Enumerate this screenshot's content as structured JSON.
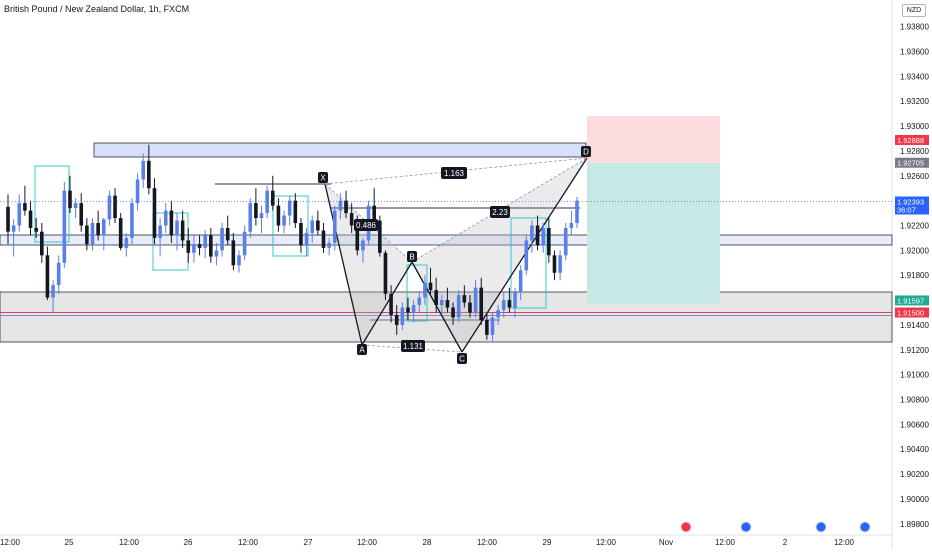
{
  "header": {
    "title": "British Pound / New Zealand Dollar, 1h, FXCM",
    "currency": "NZD"
  },
  "chart_data": {
    "type": "candlestick",
    "price_ticks": [
      "1.93800",
      "1.93600",
      "1.93400",
      "1.93200",
      "1.93000",
      "1.92800",
      "1.92600",
      "1.92200",
      "1.92000",
      "1.91800",
      "1.91400",
      "1.91200",
      "1.91000",
      "1.90800",
      "1.90600",
      "1.90400",
      "1.90200",
      "1.90000",
      "1.89800"
    ],
    "price_range": [
      1.8975,
      1.9395
    ],
    "time_ticks": [
      "12:00",
      "25",
      "12:00",
      "26",
      "12:00",
      "27",
      "12:00",
      "28",
      "12:00",
      "29",
      "12:00",
      "Nov",
      "12:00",
      "2",
      "12:00"
    ],
    "price_tags": [
      {
        "label": "1.92888",
        "value": 1.92888,
        "color": "#f23645"
      },
      {
        "label": "1.92705",
        "value": 1.92705,
        "color": "#787b86"
      },
      {
        "label": "1.92393",
        "sublabel": "36:07",
        "value": 1.92393,
        "color": "#2962ff"
      },
      {
        "label": "1.91597",
        "value": 1.91597,
        "color": "#22ab94"
      },
      {
        "label": "1.91500",
        "value": 1.915,
        "color": "#f23645"
      }
    ],
    "pattern_points": [
      {
        "label": "X",
        "value": 1.9253
      },
      {
        "label": "A",
        "value": 1.9132
      },
      {
        "label": "B",
        "value": 1.9186
      },
      {
        "label": "C",
        "value": 1.9122
      },
      {
        "label": "D",
        "value": 1.92705
      }
    ],
    "ratios": [
      {
        "label": "1.163"
      },
      {
        "label": "0.486"
      },
      {
        "label": "2.23"
      },
      {
        "label": "1.131"
      }
    ],
    "position": {
      "entry": 1.92705,
      "stop": 1.92888,
      "target": 1.91597
    },
    "candles": [
      [
        1.9235,
        1.9245,
        1.9205,
        1.9215
      ],
      [
        1.9215,
        1.9225,
        1.9195,
        1.922
      ],
      [
        1.922,
        1.9245,
        1.9215,
        1.9238
      ],
      [
        1.9238,
        1.9252,
        1.9228,
        1.9232
      ],
      [
        1.9232,
        1.924,
        1.9212,
        1.9218
      ],
      [
        1.9218,
        1.9226,
        1.921,
        1.9215
      ],
      [
        1.9215,
        1.9222,
        1.919,
        1.9196
      ],
      [
        1.9196,
        1.9203,
        1.916,
        1.9162
      ],
      [
        1.9162,
        1.9176,
        1.915,
        1.9172
      ],
      [
        1.9172,
        1.9196,
        1.9165,
        1.919
      ],
      [
        1.919,
        1.9255,
        1.9186,
        1.9248
      ],
      [
        1.9248,
        1.926,
        1.923,
        1.9234
      ],
      [
        1.9234,
        1.9242,
        1.9226,
        1.9238
      ],
      [
        1.9238,
        1.9246,
        1.9215,
        1.922
      ],
      [
        1.922,
        1.9226,
        1.92,
        1.9205
      ],
      [
        1.9205,
        1.9226,
        1.92,
        1.9222
      ],
      [
        1.9222,
        1.9232,
        1.9208,
        1.9212
      ],
      [
        1.9212,
        1.9226,
        1.92,
        1.9225
      ],
      [
        1.9225,
        1.9248,
        1.922,
        1.9244
      ],
      [
        1.9244,
        1.925,
        1.9222,
        1.9226
      ],
      [
        1.9226,
        1.923,
        1.92,
        1.9202
      ],
      [
        1.9202,
        1.9214,
        1.9195,
        1.921
      ],
      [
        1.921,
        1.9242,
        1.9205,
        1.9238
      ],
      [
        1.9238,
        1.9262,
        1.9232,
        1.9257
      ],
      [
        1.9257,
        1.9278,
        1.925,
        1.9272
      ],
      [
        1.9272,
        1.9285,
        1.9245,
        1.925
      ],
      [
        1.925,
        1.9258,
        1.9205,
        1.921
      ],
      [
        1.921,
        1.9226,
        1.9195,
        1.922
      ],
      [
        1.922,
        1.9238,
        1.9214,
        1.9232
      ],
      [
        1.9232,
        1.924,
        1.9206,
        1.9212
      ],
      [
        1.9212,
        1.923,
        1.92,
        1.9224
      ],
      [
        1.9224,
        1.9232,
        1.9202,
        1.9208
      ],
      [
        1.9208,
        1.9218,
        1.919,
        1.9198
      ],
      [
        1.9198,
        1.9212,
        1.919,
        1.9205
      ],
      [
        1.9205,
        1.9212,
        1.9196,
        1.9202
      ],
      [
        1.9202,
        1.9216,
        1.9194,
        1.9212
      ],
      [
        1.9212,
        1.9218,
        1.919,
        1.9195
      ],
      [
        1.9195,
        1.9206,
        1.9188,
        1.92
      ],
      [
        1.92,
        1.9222,
        1.9195,
        1.9218
      ],
      [
        1.9218,
        1.9228,
        1.9204,
        1.9208
      ],
      [
        1.9208,
        1.9214,
        1.9184,
        1.9188
      ],
      [
        1.9188,
        1.92,
        1.9182,
        1.9196
      ],
      [
        1.9196,
        1.922,
        1.9192,
        1.9215
      ],
      [
        1.9215,
        1.9242,
        1.921,
        1.9238
      ],
      [
        1.9238,
        1.925,
        1.922,
        1.9226
      ],
      [
        1.9226,
        1.9236,
        1.9214,
        1.923
      ],
      [
        1.923,
        1.9252,
        1.9226,
        1.9248
      ],
      [
        1.9248,
        1.926,
        1.9232,
        1.9236
      ],
      [
        1.9236,
        1.9242,
        1.9215,
        1.922
      ],
      [
        1.922,
        1.9232,
        1.9214,
        1.9228
      ],
      [
        1.9228,
        1.9244,
        1.922,
        1.924
      ],
      [
        1.924,
        1.9246,
        1.9218,
        1.9222
      ],
      [
        1.9222,
        1.9226,
        1.9198,
        1.9204
      ],
      [
        1.9204,
        1.9218,
        1.9195,
        1.9214
      ],
      [
        1.9214,
        1.9228,
        1.9206,
        1.9224
      ],
      [
        1.9224,
        1.9232,
        1.9212,
        1.9216
      ],
      [
        1.9216,
        1.9222,
        1.9198,
        1.9202
      ],
      [
        1.9202,
        1.921,
        1.9196,
        1.9206
      ],
      [
        1.9206,
        1.9236,
        1.92,
        1.9232
      ],
      [
        1.9232,
        1.9246,
        1.9225,
        1.924
      ],
      [
        1.924,
        1.9248,
        1.9226,
        1.923
      ],
      [
        1.923,
        1.9238,
        1.9214,
        1.922
      ],
      [
        1.922,
        1.9228,
        1.9196,
        1.92
      ],
      [
        1.92,
        1.921,
        1.919,
        1.9208
      ],
      [
        1.9208,
        1.924,
        1.9204,
        1.9236
      ],
      [
        1.9236,
        1.925,
        1.922,
        1.9224
      ],
      [
        1.9224,
        1.9228,
        1.9195,
        1.9198
      ],
      [
        1.9198,
        1.92,
        1.916,
        1.9165
      ],
      [
        1.9165,
        1.9172,
        1.9142,
        1.9148
      ],
      [
        1.9148,
        1.9156,
        1.9132,
        1.914
      ],
      [
        1.914,
        1.9158,
        1.9136,
        1.9154
      ],
      [
        1.9154,
        1.9162,
        1.9144,
        1.915
      ],
      [
        1.915,
        1.916,
        1.9142,
        1.9156
      ],
      [
        1.9156,
        1.9166,
        1.915,
        1.9162
      ],
      [
        1.9162,
        1.918,
        1.9156,
        1.9174
      ],
      [
        1.9174,
        1.9186,
        1.9164,
        1.9168
      ],
      [
        1.9168,
        1.9178,
        1.915,
        1.9156
      ],
      [
        1.9156,
        1.9164,
        1.9148,
        1.916
      ],
      [
        1.916,
        1.917,
        1.915,
        1.9154
      ],
      [
        1.9154,
        1.9158,
        1.914,
        1.9146
      ],
      [
        1.9146,
        1.9168,
        1.9142,
        1.9164
      ],
      [
        1.9164,
        1.9172,
        1.9154,
        1.9158
      ],
      [
        1.9158,
        1.9164,
        1.9146,
        1.915
      ],
      [
        1.915,
        1.9176,
        1.9146,
        1.917
      ],
      [
        1.917,
        1.9178,
        1.914,
        1.9144
      ],
      [
        1.9144,
        1.915,
        1.9128,
        1.9132
      ],
      [
        1.9132,
        1.915,
        1.9126,
        1.9146
      ],
      [
        1.9146,
        1.9156,
        1.914,
        1.9152
      ],
      [
        1.9152,
        1.9166,
        1.9146,
        1.916
      ],
      [
        1.916,
        1.917,
        1.915,
        1.9154
      ],
      [
        1.9154,
        1.917,
        1.9146,
        1.9166
      ],
      [
        1.9166,
        1.9188,
        1.916,
        1.9184
      ],
      [
        1.9184,
        1.9212,
        1.918,
        1.9208
      ],
      [
        1.9208,
        1.9224,
        1.9198,
        1.922
      ],
      [
        1.922,
        1.9228,
        1.92,
        1.9204
      ],
      [
        1.9204,
        1.9222,
        1.9198,
        1.9218
      ],
      [
        1.9218,
        1.9226,
        1.919,
        1.9196
      ],
      [
        1.9196,
        1.92,
        1.9176,
        1.9182
      ],
      [
        1.9182,
        1.92,
        1.9176,
        1.9196
      ],
      [
        1.9196,
        1.9222,
        1.9192,
        1.9218
      ],
      [
        1.9218,
        1.9232,
        1.9212,
        1.9222
      ],
      [
        1.9222,
        1.9243,
        1.9218,
        1.924
      ]
    ]
  }
}
